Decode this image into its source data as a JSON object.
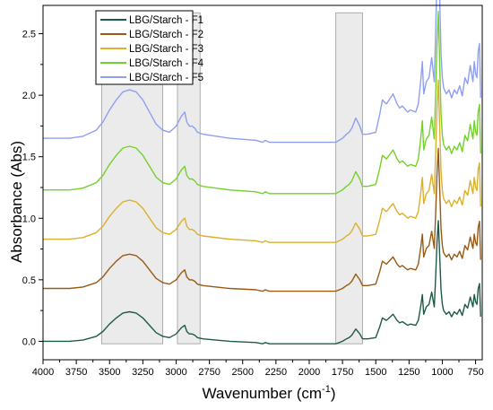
{
  "chart_data": {
    "type": "line",
    "xlabel": "Wavenumber (cm",
    "xlabel_superscript": "-1",
    "xlabel_suffix": ")",
    "ylabel": "Absorbance (Abs)",
    "xlim": [
      4000,
      700
    ],
    "ylim": [
      -0.15,
      2.73
    ],
    "x_reversed": true,
    "x_ticks": [
      4000,
      3750,
      3500,
      3250,
      3000,
      2750,
      2500,
      2250,
      2000,
      1750,
      1500,
      1250,
      1000,
      750
    ],
    "y_ticks": [
      0.0,
      0.5,
      1.0,
      1.5,
      2.0,
      2.5
    ],
    "y_tick_labels": [
      "0.0",
      "0.5",
      "1.0",
      "1.5",
      "2.0",
      "2.5"
    ],
    "grid": false,
    "legend_position": "top-left",
    "highlight_bands": [
      {
        "x_from": 3560,
        "x_to": 3100
      },
      {
        "x_from": 2990,
        "x_to": 2820
      },
      {
        "x_from": 1800,
        "x_to": 1600
      }
    ],
    "band_color": "#ebebeb",
    "band_edge_color": "#9a9a9a",
    "series": [
      {
        "name": "LBG/Starch - F1",
        "color": "#1e5b47",
        "offset": 0.0
      },
      {
        "name": "LBG/Starch - F2",
        "color": "#9a5a14",
        "offset": 0.43
      },
      {
        "name": "LBG/Starch - F3",
        "color": "#dbb02c",
        "offset": 0.83
      },
      {
        "name": "LBG/Starch - F4",
        "color": "#74d12c",
        "offset": 1.23
      },
      {
        "name": "LBG/Starch - F5",
        "color": "#8f9ff0",
        "offset": 1.65
      }
    ],
    "spectrum_profile": {
      "x": [
        4000,
        3800,
        3700,
        3600,
        3550,
        3500,
        3450,
        3400,
        3350,
        3300,
        3250,
        3200,
        3150,
        3100,
        3050,
        3000,
        2960,
        2935,
        2920,
        2900,
        2880,
        2860,
        2840,
        2800,
        2600,
        2400,
        2350,
        2330,
        2300,
        2000,
        1800,
        1750,
        1720,
        1700,
        1680,
        1650,
        1620,
        1600,
        1560,
        1500,
        1470,
        1450,
        1420,
        1400,
        1370,
        1340,
        1320,
        1300,
        1260,
        1240,
        1200,
        1180,
        1160,
        1150,
        1140,
        1120,
        1100,
        1080,
        1060,
        1050,
        1040,
        1030,
        1020,
        1010,
        1000,
        990,
        970,
        950,
        930,
        910,
        890,
        870,
        850,
        830,
        810,
        790,
        770,
        760,
        750,
        740,
        730,
        720,
        712
      ],
      "y": [
        0.0,
        0.0,
        0.01,
        0.04,
        0.08,
        0.14,
        0.19,
        0.23,
        0.24,
        0.23,
        0.19,
        0.13,
        0.07,
        0.04,
        0.03,
        0.06,
        0.11,
        0.13,
        0.08,
        0.06,
        0.06,
        0.05,
        0.03,
        0.02,
        0.0,
        -0.01,
        -0.02,
        -0.01,
        -0.02,
        -0.02,
        -0.02,
        0.0,
        0.02,
        0.03,
        0.05,
        0.1,
        0.06,
        0.02,
        0.02,
        0.03,
        0.12,
        0.19,
        0.17,
        0.19,
        0.22,
        0.17,
        0.15,
        0.16,
        0.13,
        0.14,
        0.13,
        0.17,
        0.3,
        0.38,
        0.22,
        0.28,
        0.3,
        0.4,
        0.28,
        0.52,
        0.8,
        0.98,
        0.7,
        0.42,
        0.3,
        0.25,
        0.22,
        0.24,
        0.2,
        0.24,
        0.22,
        0.26,
        0.21,
        0.3,
        0.27,
        0.36,
        0.28,
        0.38,
        0.32,
        0.3,
        0.43,
        0.47,
        0.2
      ]
    }
  },
  "legend": {
    "items": [
      {
        "label": "LBG/Starch - F1"
      },
      {
        "label": "LBG/Starch - F2"
      },
      {
        "label": "LBG/Starch - F3"
      },
      {
        "label": "LBG/Starch - F4"
      },
      {
        "label": "LBG/Starch - F5"
      }
    ]
  }
}
